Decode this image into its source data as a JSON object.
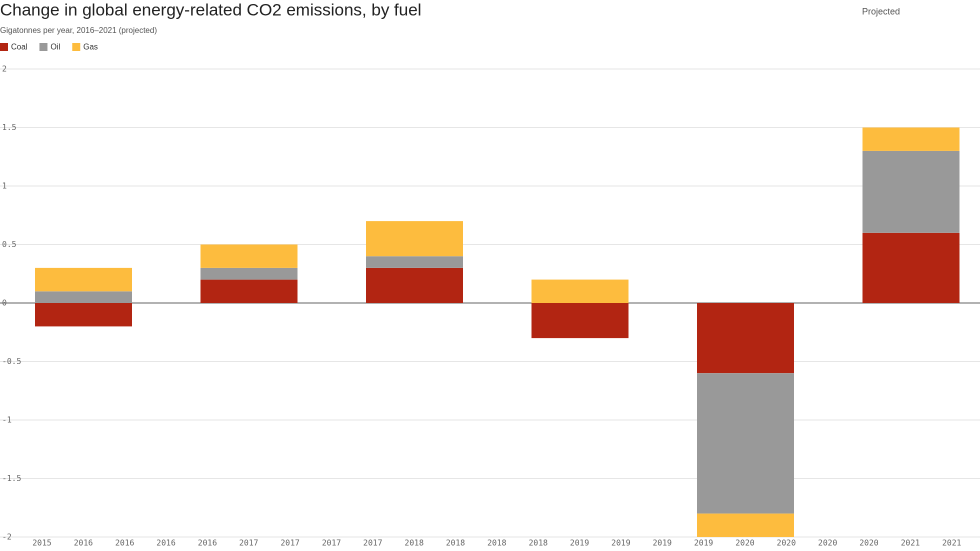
{
  "chart_data": {
    "type": "stacked-bar",
    "title": "Change in global energy-related CO2 emissions, by fuel",
    "subtitle": "Gigatonnes per year, 2016–2021 (projected)",
    "annotation": "Projected",
    "categories": [
      null,
      null,
      null,
      null,
      null,
      null
    ],
    "series": [
      {
        "name": "Coal",
        "color": "#b22512",
        "values": [
          -0.2,
          0.2,
          0.3,
          -0.3,
          -0.6,
          0.6
        ]
      },
      {
        "name": "Oil",
        "color": "#999999",
        "values": [
          0.1,
          0.1,
          0.1,
          0,
          -1.2,
          0.7
        ]
      },
      {
        "name": "Gas",
        "color": "#fdbc3e",
        "values": [
          0.2,
          0.2,
          0.3,
          0.2,
          -0.2,
          0.2
        ]
      }
    ],
    "ylim": [
      -2,
      2
    ],
    "yticks": [
      2,
      1.5,
      1,
      0.5,
      0,
      -0.5,
      -1,
      -1.5,
      -2
    ],
    "xtick_labels": [
      "2015",
      "2016",
      "2016",
      "2016",
      "2016",
      "2017",
      "2017",
      "2017",
      "2017",
      "2018",
      "2018",
      "2018",
      "2018",
      "2019",
      "2019",
      "2019",
      "2019",
      "2020",
      "2020",
      "2020",
      "2020",
      "2021",
      "2021"
    ],
    "grid": true
  }
}
